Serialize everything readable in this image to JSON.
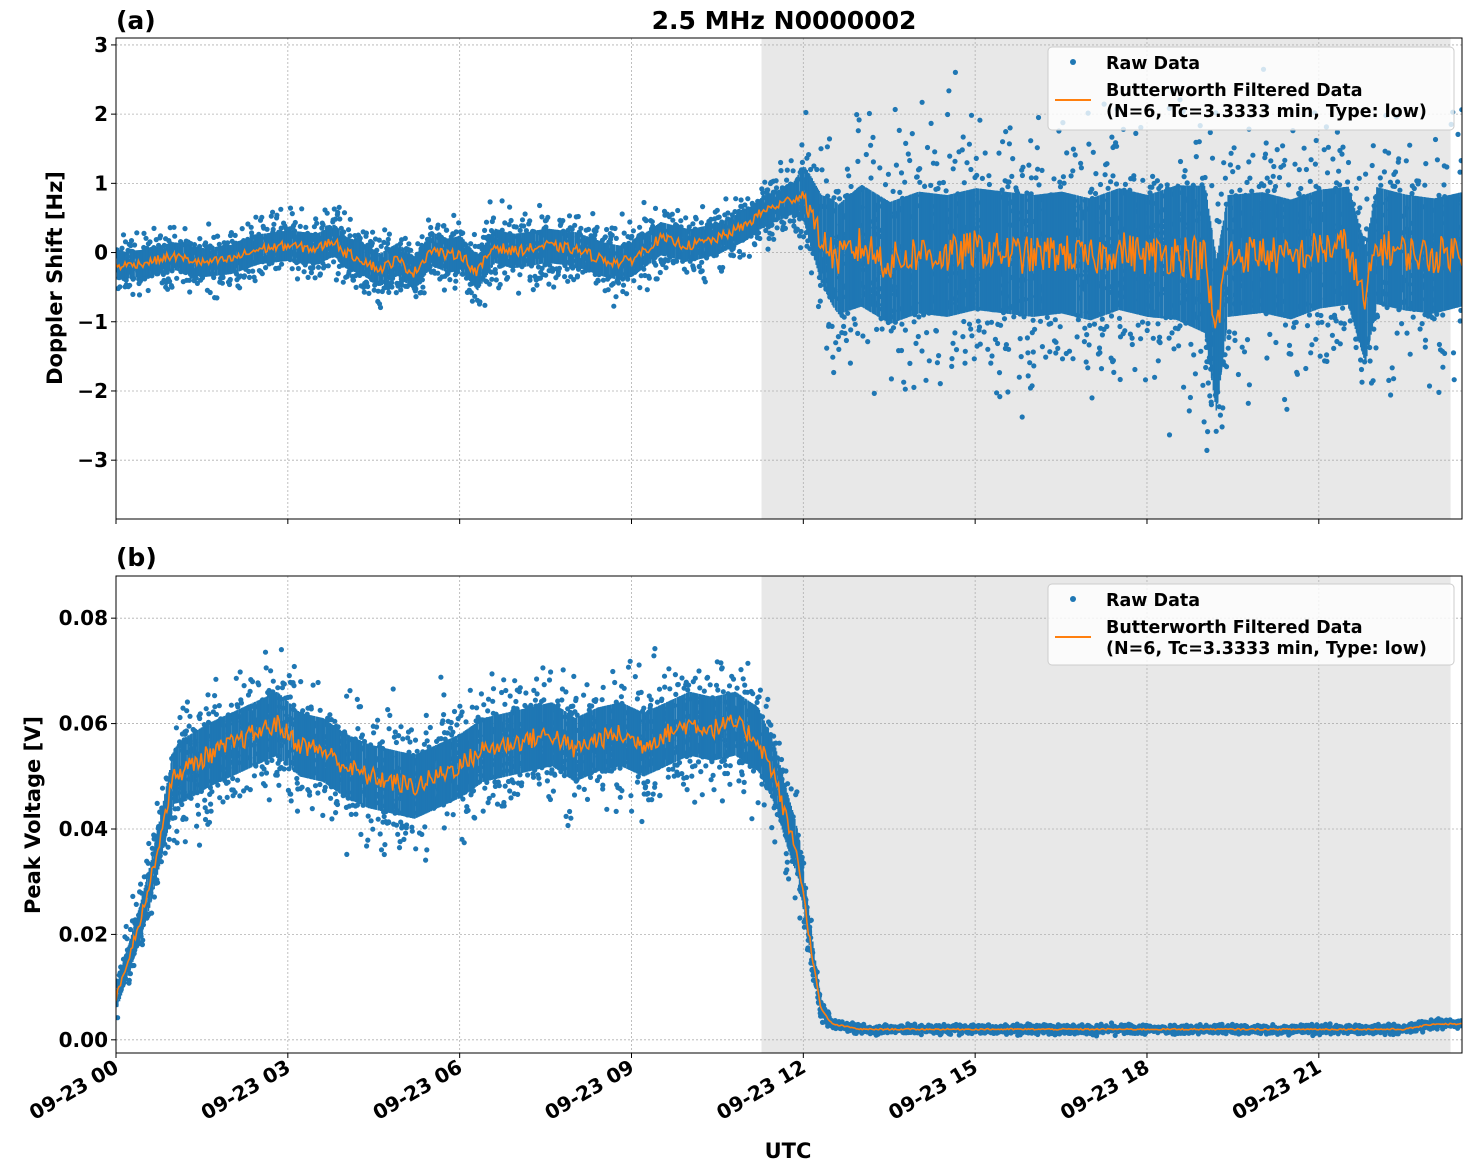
{
  "figure": {
    "title": "2.5 MHz N0000002",
    "xlabel": "UTC"
  },
  "colors": {
    "raw": "#1f77b4",
    "filtered": "#ff7f0e",
    "shade": "#e8e8e8",
    "grid": "#b0b0b0"
  },
  "chart_data": [
    {
      "type": "scatter",
      "panel_label": "(a)",
      "ylabel": "Doppler Shift [Hz]",
      "xlim": [
        0,
        23.5
      ],
      "ylim": [
        -3.85,
        3.1
      ],
      "x_unit": "hours UTC since 09-23 00:00",
      "x_ticks": [
        0,
        3,
        6,
        9,
        12,
        15,
        18,
        21
      ],
      "x_tick_labels": [
        "09-23 00",
        "09-23 03",
        "09-23 06",
        "09-23 09",
        "09-23 12",
        "09-23 15",
        "09-23 18",
        "09-23 21"
      ],
      "y_ticks": [
        -3,
        -2,
        -1,
        0,
        1,
        2,
        3
      ],
      "y_tick_labels": [
        "−3",
        "−2",
        "−1",
        "0",
        "1",
        "2",
        "3"
      ],
      "grid": true,
      "shaded_interval": [
        11.27,
        23.3
      ],
      "legend": {
        "position": "top-right",
        "entries": [
          "Raw Data",
          "Butterworth Filtered Data",
          "(N=6, Tc=3.3333 min, Type: low)"
        ]
      },
      "series": [
        {
          "name": "Butterworth Filtered Data",
          "kind": "line",
          "x": [
            0,
            0.5,
            1,
            1.5,
            2,
            2.5,
            3,
            3.5,
            3.8,
            4,
            4.3,
            4.6,
            4.9,
            5.2,
            5.5,
            5.8,
            6,
            6.3,
            6.6,
            6.9,
            7.2,
            7.5,
            8,
            8.5,
            8.8,
            9,
            9.5,
            10,
            10.5,
            11,
            11.3,
            11.6,
            12,
            12.3,
            12.6,
            13,
            13.5,
            14,
            14.5,
            15,
            15.5,
            16,
            16.5,
            17,
            17.5,
            18,
            18.5,
            19,
            19.2,
            19.4,
            20,
            20.5,
            21,
            21.5,
            21.8,
            22,
            22.5,
            23,
            23.5
          ],
          "y": [
            -0.2,
            -0.15,
            -0.05,
            -0.15,
            -0.1,
            0.05,
            0.1,
            0.05,
            0.18,
            0.0,
            -0.1,
            -0.25,
            -0.1,
            -0.3,
            0.05,
            -0.05,
            0.0,
            -0.3,
            0.1,
            0.02,
            0.05,
            0.1,
            0.05,
            -0.1,
            -0.15,
            -0.1,
            0.2,
            0.1,
            0.2,
            0.4,
            0.6,
            0.7,
            0.85,
            0.2,
            -0.1,
            0.1,
            -0.15,
            0.0,
            -0.05,
            0.05,
            0.0,
            -0.05,
            0.0,
            -0.1,
            0.05,
            -0.05,
            0.0,
            -0.1,
            -1.2,
            -0.05,
            0.0,
            -0.1,
            0.05,
            0.1,
            -0.75,
            0.1,
            0.0,
            -0.05,
            0.05
          ]
        },
        {
          "name": "Raw Data",
          "kind": "points",
          "center_from": "Butterworth Filtered Data",
          "spread_envelope": {
            "x": [
              0,
              6,
              9,
              11,
              11.8,
              12.1,
              12.5,
              13,
              18,
              19.2,
              19.4,
              23.5
            ],
            "half_width": [
              0.35,
              0.45,
              0.45,
              0.4,
              0.4,
              0.9,
              1.4,
              1.6,
              1.6,
              2.0,
              1.6,
              1.5
            ]
          }
        }
      ]
    },
    {
      "type": "scatter",
      "panel_label": "(b)",
      "ylabel": "Peak Voltage [V]",
      "xlim": [
        0,
        23.5
      ],
      "ylim": [
        -0.0025,
        0.088
      ],
      "x_unit": "hours UTC since 09-23 00:00",
      "x_ticks": [
        0,
        3,
        6,
        9,
        12,
        15,
        18,
        21
      ],
      "x_tick_labels": [
        "09-23 00",
        "09-23 03",
        "09-23 06",
        "09-23 09",
        "09-23 12",
        "09-23 15",
        "09-23 18",
        "09-23 21"
      ],
      "y_ticks": [
        0,
        0.02,
        0.04,
        0.06,
        0.08
      ],
      "y_tick_labels": [
        "0.00",
        "0.02",
        "0.04",
        "0.06",
        "0.08"
      ],
      "grid": true,
      "shaded_interval": [
        11.27,
        23.3
      ],
      "legend": {
        "position": "top-right",
        "entries": [
          "Raw Data",
          "Butterworth Filtered Data",
          "(N=6, Tc=3.3333 min, Type: low)"
        ]
      },
      "series": [
        {
          "name": "Butterworth Filtered Data",
          "kind": "line",
          "x": [
            0,
            0.2,
            0.4,
            0.6,
            0.8,
            1.0,
            1.3,
            1.6,
            2.0,
            2.4,
            2.8,
            3.2,
            3.6,
            4.0,
            4.4,
            4.8,
            5.2,
            5.6,
            6.0,
            6.4,
            6.8,
            7.2,
            7.6,
            8.0,
            8.4,
            8.8,
            9.2,
            9.6,
            10.0,
            10.4,
            10.8,
            11.2,
            11.5,
            11.7,
            11.9,
            12.1,
            12.3,
            12.5,
            13,
            14,
            15,
            16,
            17,
            18,
            19,
            20,
            21,
            22,
            22.5,
            23,
            23.5
          ],
          "y": [
            0.008,
            0.015,
            0.022,
            0.03,
            0.04,
            0.05,
            0.052,
            0.054,
            0.056,
            0.058,
            0.06,
            0.056,
            0.055,
            0.052,
            0.05,
            0.049,
            0.048,
            0.05,
            0.052,
            0.055,
            0.056,
            0.057,
            0.058,
            0.055,
            0.057,
            0.058,
            0.056,
            0.058,
            0.06,
            0.059,
            0.06,
            0.057,
            0.05,
            0.042,
            0.035,
            0.02,
            0.006,
            0.003,
            0.002,
            0.002,
            0.002,
            0.002,
            0.002,
            0.002,
            0.002,
            0.002,
            0.002,
            0.002,
            0.002,
            0.003,
            0.003
          ]
        },
        {
          "name": "Raw Data",
          "kind": "points",
          "center_from": "Butterworth Filtered Data",
          "spread_envelope": {
            "x": [
              0,
              0.8,
              1.2,
              11.2,
              11.8,
              12.1,
              12.3,
              12.5,
              23.5
            ],
            "half_width": [
              0.004,
              0.008,
              0.011,
              0.011,
              0.009,
              0.005,
              0.002,
              0.0008,
              0.0008
            ]
          }
        }
      ]
    }
  ]
}
